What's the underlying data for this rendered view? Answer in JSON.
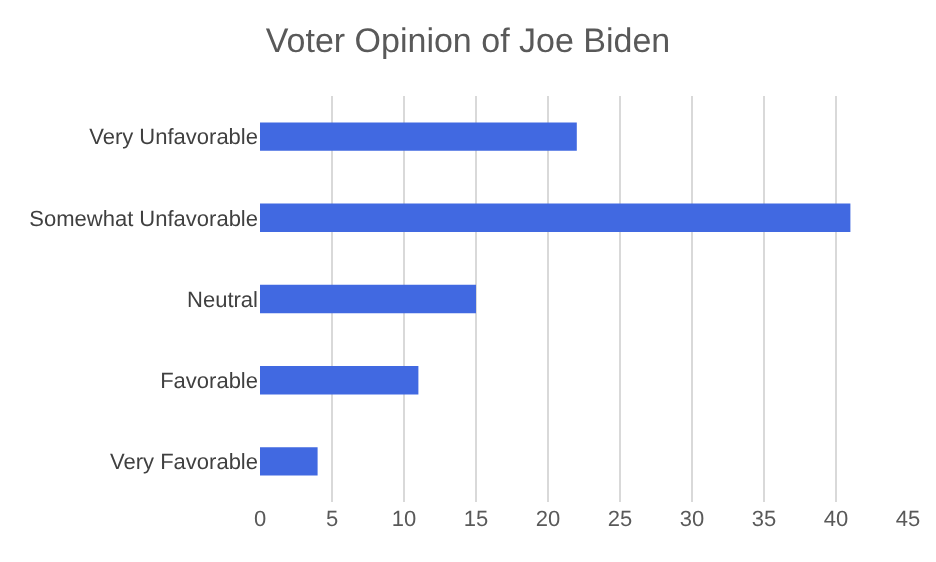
{
  "chart_data": {
    "type": "bar",
    "orientation": "horizontal",
    "title": "Voter Opinion of Joe Biden",
    "categories": [
      "Very Unfavorable",
      "Somewhat Unfavorable",
      "Neutral",
      "Favorable",
      "Very Favorable"
    ],
    "values": [
      22,
      41,
      15,
      11,
      4
    ],
    "color": "#4169e1",
    "xlim": [
      0,
      45
    ],
    "xticks": [
      0,
      5,
      10,
      15,
      20,
      25,
      30,
      35,
      40,
      45
    ],
    "grid": "x",
    "legend": false
  }
}
